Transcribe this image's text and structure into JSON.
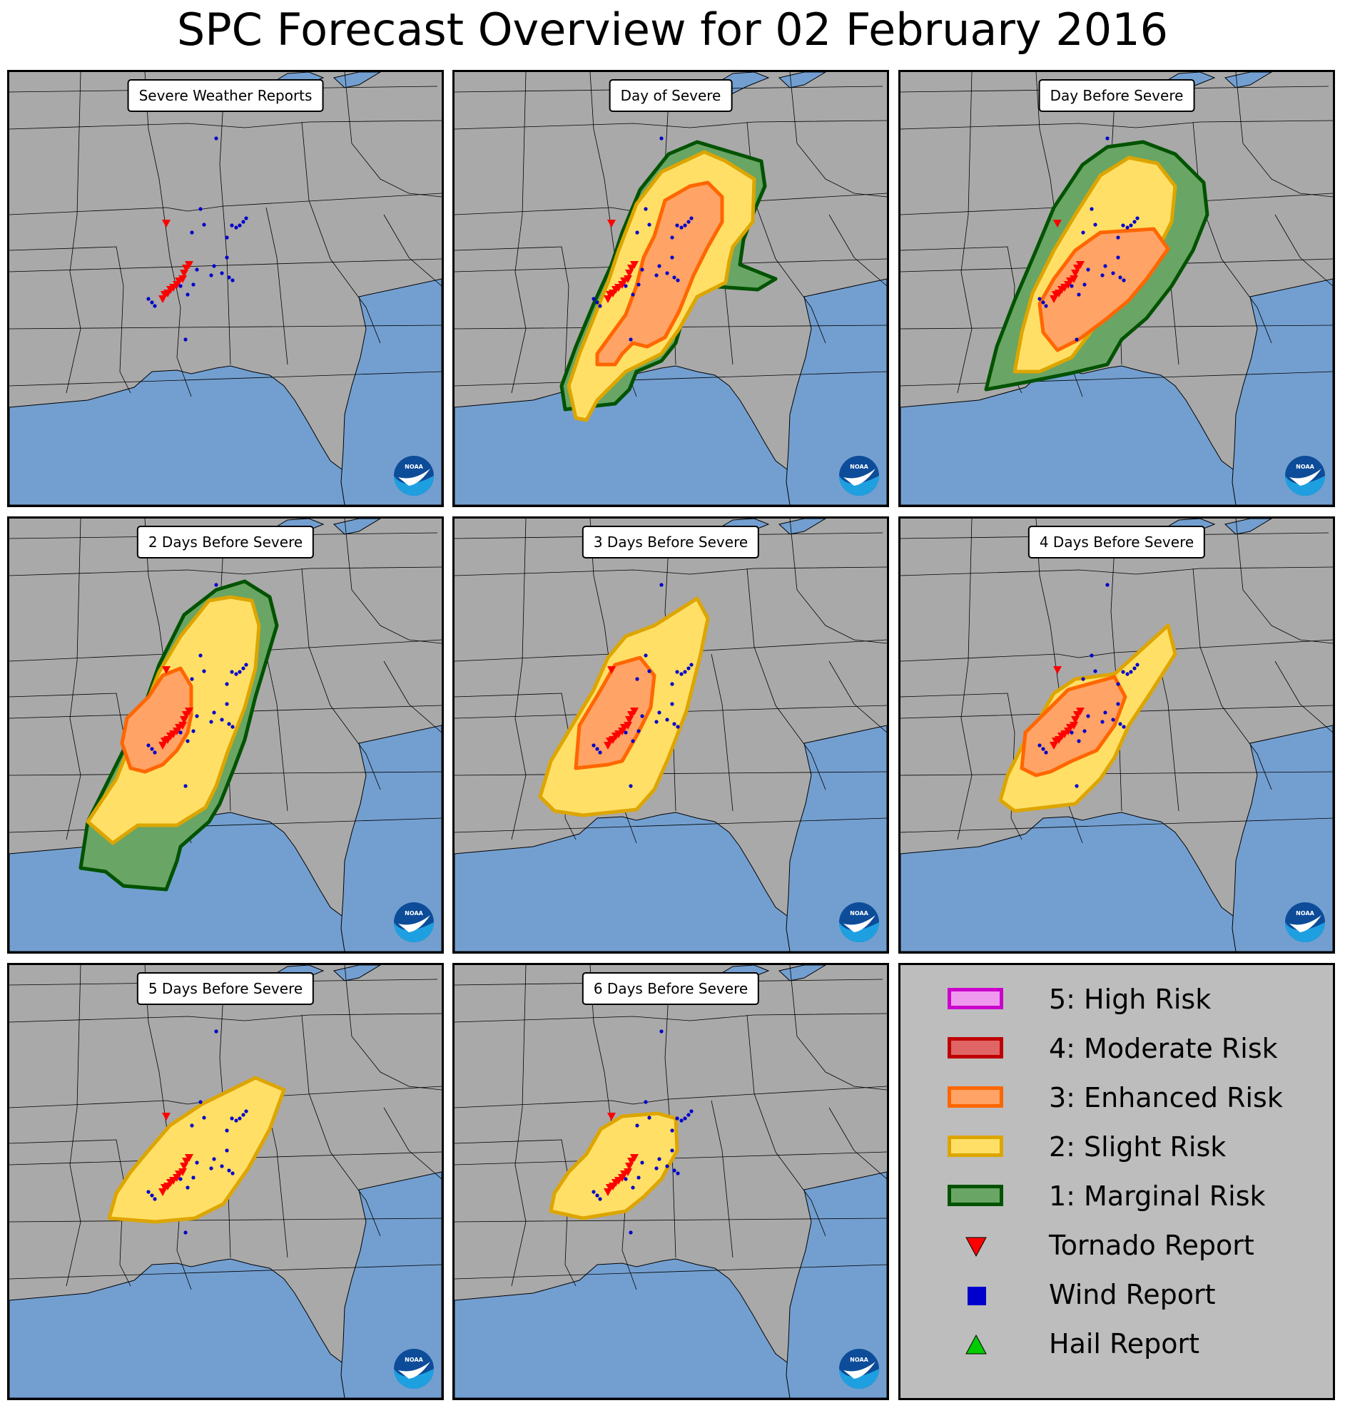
{
  "title": "SPC Forecast Overview for 02 February 2016",
  "colors": {
    "land": "#a9a9a9",
    "water": "#739fd0",
    "boundary": "#000000",
    "marginal_fill": "#69a565",
    "marginal_edge": "#005300",
    "slight_fill": "#ffdf66",
    "slight_edge": "#dda500",
    "enhanced_fill": "#ffa366",
    "enhanced_edge": "#ff6600",
    "moderate_fill": "#e06666",
    "moderate_edge": "#c00000",
    "high_fill": "#ee99ee",
    "high_edge": "#cc00cc",
    "tornado": "#ff0000",
    "wind": "#0000cc",
    "hail": "#00cc00"
  },
  "panels": [
    {
      "label": "Severe Weather Reports",
      "risk_levels": []
    },
    {
      "label": "Day of Severe",
      "risk_levels": [
        "marginal",
        "slight",
        "enhanced"
      ]
    },
    {
      "label": "Day Before Severe",
      "risk_levels": [
        "marginal",
        "slight",
        "enhanced"
      ]
    },
    {
      "label": "2 Days Before Severe",
      "risk_levels": [
        "marginal",
        "slight",
        "enhanced"
      ]
    },
    {
      "label": "3 Days Before Severe",
      "risk_levels": [
        "slight",
        "enhanced"
      ]
    },
    {
      "label": "4 Days Before Severe",
      "risk_levels": [
        "slight",
        "enhanced"
      ]
    },
    {
      "label": "5 Days Before Severe",
      "risk_levels": [
        "slight"
      ]
    },
    {
      "label": "6 Days Before Severe",
      "risk_levels": [
        "slight"
      ]
    }
  ],
  "legend": [
    {
      "label": "5: High Risk",
      "kind": "swatch",
      "fill": "#ee99ee",
      "edge": "#cc00cc"
    },
    {
      "label": "4: Moderate Risk",
      "kind": "swatch",
      "fill": "#e06666",
      "edge": "#c00000"
    },
    {
      "label": "3: Enhanced Risk",
      "kind": "swatch",
      "fill": "#ffa366",
      "edge": "#ff6600"
    },
    {
      "label": "2: Slight Risk",
      "kind": "swatch",
      "fill": "#ffdf66",
      "edge": "#dda500"
    },
    {
      "label": "1: Marginal Risk",
      "kind": "swatch",
      "fill": "#69a565",
      "edge": "#005300"
    },
    {
      "label": "Tornado Report",
      "kind": "tornado"
    },
    {
      "label": "Wind Report",
      "kind": "wind"
    },
    {
      "label": "Hail Report",
      "kind": "hail"
    }
  ]
}
